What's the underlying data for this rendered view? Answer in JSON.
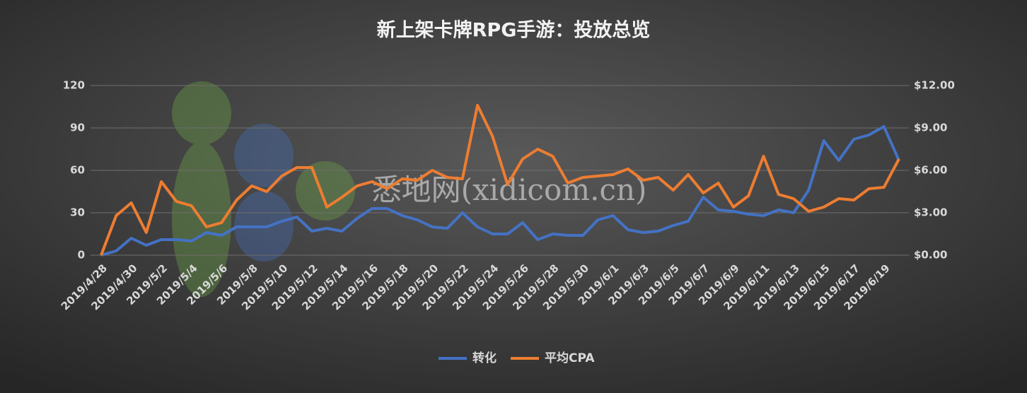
{
  "chart_data": {
    "type": "line",
    "title": "新上架卡牌RPG手游：投放总览",
    "watermark": "悉地网(xidicom.cn)",
    "categories": [
      "2019/4/28",
      null,
      "2019/4/30",
      null,
      "2019/5/2",
      null,
      "2019/5/4",
      null,
      "2019/5/6",
      null,
      "2019/5/8",
      null,
      "2019/5/10",
      null,
      "2019/5/12",
      null,
      "2019/5/14",
      null,
      "2019/5/16",
      null,
      "2019/5/18",
      null,
      "2019/5/20",
      null,
      "2019/5/22",
      null,
      "2019/5/24",
      null,
      "2019/5/26",
      null,
      "2019/5/28",
      null,
      "2019/5/30",
      null,
      "2019/6/1",
      null,
      "2019/6/3",
      null,
      "2019/6/5",
      null,
      "2019/6/7",
      null,
      "2019/6/9",
      null,
      "2019/6/11",
      null,
      "2019/6/13",
      null,
      "2019/6/15",
      null,
      "2019/6/17",
      null,
      "2019/6/19",
      null
    ],
    "series": [
      {
        "name": "转化",
        "color": "#4472c4",
        "values": [
          0,
          3,
          12,
          7,
          11,
          11,
          10,
          16,
          14,
          20,
          20,
          20,
          24,
          27,
          17,
          19,
          17,
          26,
          33,
          33,
          28,
          25,
          20,
          19,
          30,
          20,
          15,
          15,
          23,
          11,
          15,
          14,
          14,
          25,
          28,
          18,
          16,
          17,
          21,
          24,
          41,
          32,
          31,
          29,
          28,
          32,
          30,
          46,
          81,
          67,
          82,
          85,
          91,
          67
        ]
      },
      {
        "name": "平均CPA",
        "color": "#ed7d31",
        "axis": "y2",
        "values": [
          0,
          2.8,
          3.7,
          1.6,
          5.2,
          3.8,
          3.5,
          2.0,
          2.3,
          3.9,
          4.9,
          4.5,
          5.6,
          6.2,
          6.2,
          3.4,
          4.1,
          4.9,
          5.2,
          4.7,
          5.4,
          5.3,
          6.0,
          5.5,
          5.4,
          10.6,
          8.4,
          5.0,
          6.8,
          7.5,
          7.0,
          5.1,
          5.5,
          5.6,
          5.7,
          6.1,
          5.3,
          5.5,
          4.6,
          5.7,
          4.4,
          5.1,
          3.4,
          4.2,
          7.0,
          4.3,
          4.0,
          3.1,
          3.4,
          4.0,
          3.9,
          4.7,
          4.8,
          6.8
        ]
      }
    ],
    "ylim": [
      0,
      120
    ],
    "yticks": [
      0,
      30,
      60,
      90,
      120
    ],
    "y2lim": [
      0,
      12
    ],
    "y2ticks": [
      {
        "value": 0,
        "label": "$0.00"
      },
      {
        "value": 3,
        "label": "$3.00"
      },
      {
        "value": 6,
        "label": "$6.00"
      },
      {
        "value": 9,
        "label": "$9.00"
      },
      {
        "value": 12,
        "label": "$12.00"
      }
    ],
    "grid": true,
    "legend": "bottom"
  }
}
